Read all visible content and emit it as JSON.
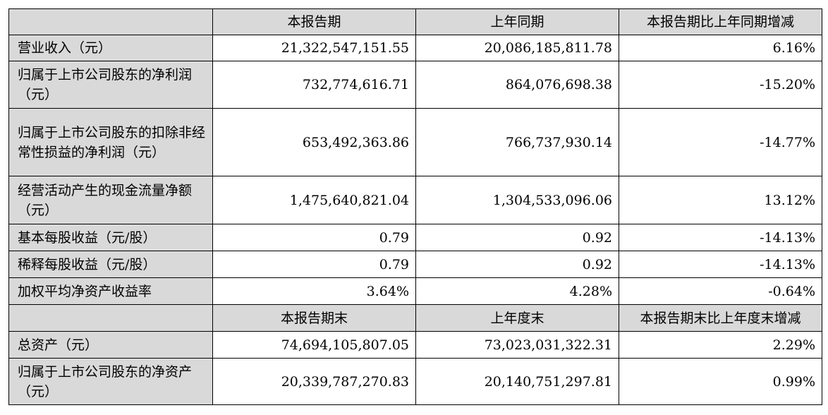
{
  "header1": [
    "本报告期",
    "上年同期",
    "本报告期比上年同期增减"
  ],
  "rows1": [
    {
      "label": "营业收入（元）",
      "v1": "21,322,547,151.55",
      "v2": "20,086,185,811.78",
      "v3": "6.16%"
    },
    {
      "label": "归属于上市公司股东的净利润（元）",
      "v1": "732,774,616.71",
      "v2": "864,076,698.38",
      "v3": "-15.20%"
    },
    {
      "label": "归属于上市公司股东的扣除非经常性损益的净利润（元）",
      "v1": "653,492,363.86",
      "v2": "766,737,930.14",
      "v3": "-14.77%"
    },
    {
      "label": "经营活动产生的现金流量净额（元）",
      "v1": "1,475,640,821.04",
      "v2": "1,304,533,096.06",
      "v3": "13.12%"
    },
    {
      "label": "基本每股收益（元/股）",
      "v1": "0.79",
      "v2": "0.92",
      "v3": "-14.13%"
    },
    {
      "label": "稀释每股收益（元/股）",
      "v1": "0.79",
      "v2": "0.92",
      "v3": "-14.13%"
    },
    {
      "label": "加权平均净资产收益率",
      "v1": "3.64%",
      "v2": "4.28%",
      "v3": "-0.64%"
    }
  ],
  "header2": [
    "本报告期末",
    "上年度末",
    "本报告期末比上年度末增减"
  ],
  "rows2": [
    {
      "label": "总资产（元）",
      "v1": "74,694,105,807.05",
      "v2": "73,023,031,322.31",
      "v3": "2.29%"
    },
    {
      "label": "归属于上市公司股东的净资产（元）",
      "v1": "20,339,787,270.83",
      "v2": "20,140,751,297.81",
      "v3": "0.99%"
    }
  ]
}
